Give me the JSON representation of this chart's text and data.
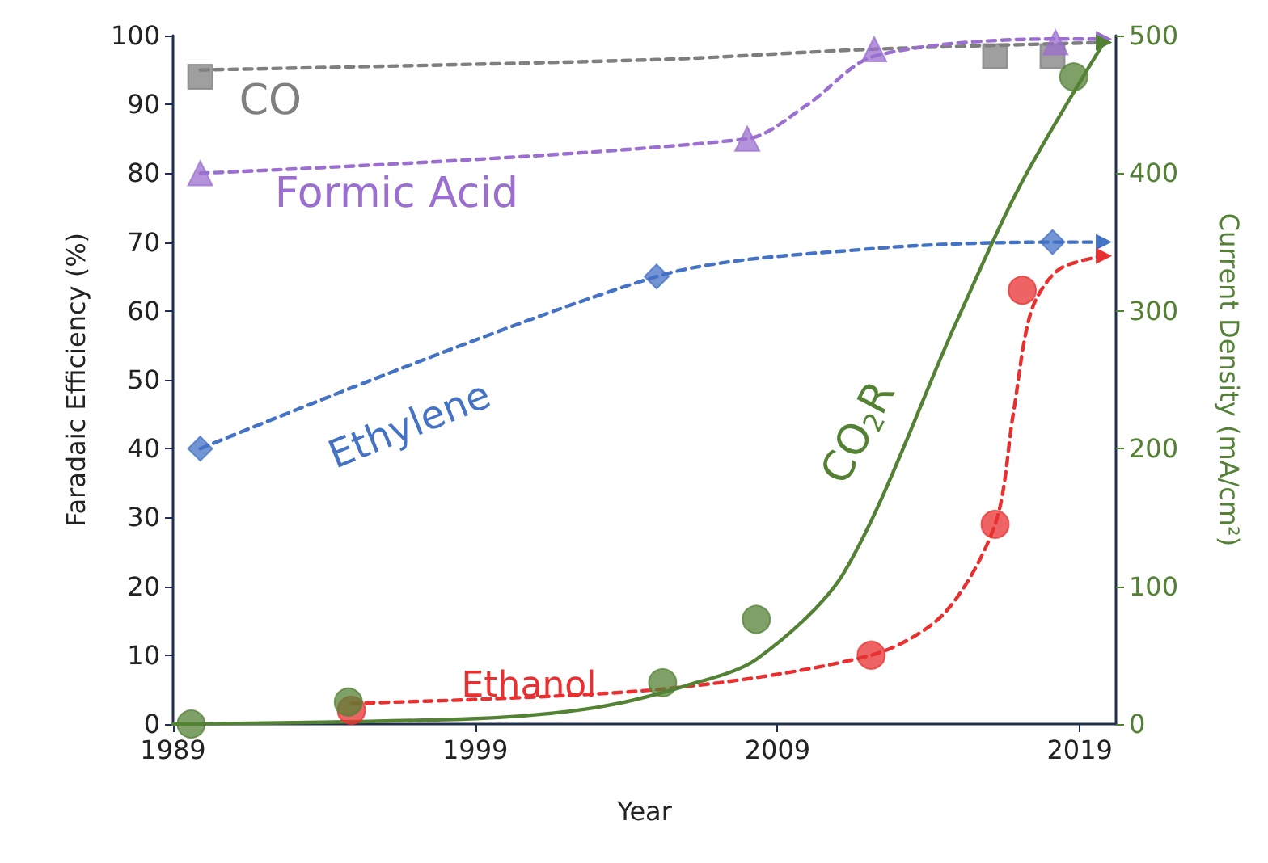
{
  "chart_data": {
    "type": "scatter",
    "xlabel": "Year",
    "ylabel": "Faradaic Efficiency (%)",
    "y2label": "Current Density (mA/cm²)",
    "xlim": [
      1989,
      2020.2
    ],
    "xticks": [
      1989,
      1999,
      2009,
      2019
    ],
    "ylim": [
      0,
      100
    ],
    "yticks": [
      0,
      10,
      20,
      30,
      40,
      50,
      60,
      70,
      80,
      90,
      100
    ],
    "y2lim": [
      0,
      500
    ],
    "y2ticks": [
      0,
      100,
      200,
      300,
      400,
      500
    ],
    "grid": false,
    "legend": false,
    "series": [
      {
        "name": "CO",
        "type": "scatter",
        "marker": "square",
        "color": "#7f7f7f",
        "x": [
          1989.9,
          2016.2,
          2018.1
        ],
        "values": [
          94,
          97,
          97
        ]
      },
      {
        "type": "line",
        "marker": "none",
        "line_style": "dashed",
        "color": "#7f7f7f",
        "x": [
          1989.9,
          2005,
          2012,
          2019.8
        ],
        "values": [
          95,
          96.5,
          98,
          99
        ]
      },
      {
        "name": "Formic Acid",
        "type": "scatter",
        "marker": "triangle",
        "color": "#9b6fcf",
        "x": [
          1989.9,
          2008,
          2012.2,
          2018.2
        ],
        "values": [
          80,
          85,
          98,
          99
        ]
      },
      {
        "type": "line",
        "marker": "none",
        "line_style": "dashed",
        "color": "#9b6fcf",
        "x": [
          1989.9,
          2008,
          2010,
          2012.2,
          2018.2,
          2019.8
        ],
        "values": [
          80,
          85,
          90,
          97,
          99.5,
          99.5
        ]
      },
      {
        "name": "Ethylene",
        "type": "scatter",
        "marker": "diamond",
        "color": "#4472c4",
        "x": [
          1989.9,
          2005,
          2018.1
        ],
        "values": [
          40,
          65,
          70
        ]
      },
      {
        "type": "line",
        "marker": "none",
        "line_style": "dashed",
        "color": "#4472c4",
        "x": [
          1989.9,
          2005,
          2012,
          2018.1,
          2019.8
        ],
        "values": [
          40,
          65,
          69,
          70,
          70
        ]
      },
      {
        "name": "Ethanol",
        "type": "scatter",
        "marker": "circle",
        "color": "#e83030",
        "x": [
          1994.9,
          2012.1,
          2016.2,
          2017.1
        ],
        "values": [
          2,
          10,
          29,
          63
        ]
      },
      {
        "type": "line",
        "marker": "none",
        "line_style": "dashed",
        "color": "#e83030",
        "x": [
          1994.9,
          2005,
          2012.1,
          2014.5,
          2016.2,
          2016.8,
          2017.4,
          2018.3,
          2019.8
        ],
        "values": [
          3,
          5,
          10,
          16,
          29,
          45,
          60,
          66,
          68
        ]
      },
      {
        "name": "CO$_{2}$R",
        "type": "scatter",
        "axis": "y2",
        "marker": "circle",
        "color": "#548235",
        "x": [
          1989.6,
          1994.8,
          2005.2,
          2008.3,
          2018.8
        ],
        "values": [
          0,
          16,
          30,
          76,
          470
        ]
      },
      {
        "type": "line",
        "axis": "y2",
        "marker": "none",
        "line_style": "solid",
        "color": "#548235",
        "x": [
          1989,
          1999,
          2003,
          2006,
          2008.3,
          2011.2,
          2014.9,
          2017,
          2019.8
        ],
        "values": [
          0,
          4,
          12,
          28,
          47,
          110,
          291,
          390,
          495
        ]
      }
    ]
  }
}
